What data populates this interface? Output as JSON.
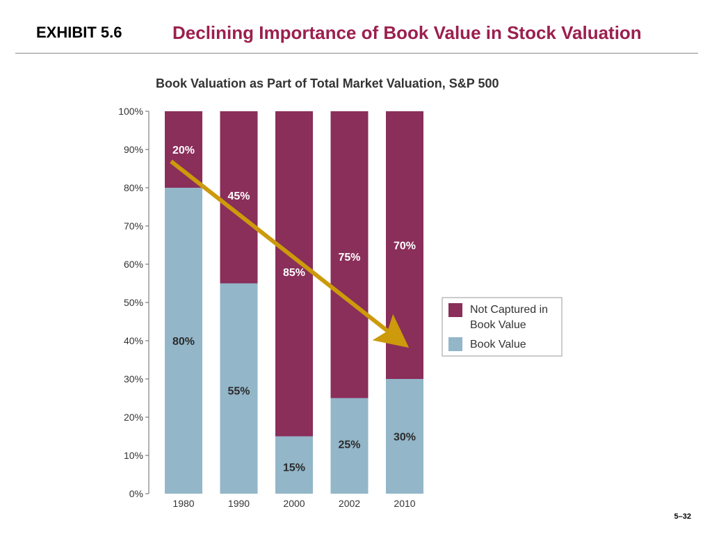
{
  "header": {
    "exhibit": "EXHIBIT 5.6",
    "title": "Declining Importance of Book Value in Stock Valuation"
  },
  "footer": {
    "page_number": "5–32"
  },
  "chart_data": {
    "type": "bar",
    "stacked": true,
    "title": "Book Valuation as Part of Total Market Valuation, S&P 500",
    "xlabel": "",
    "ylabel": "",
    "ylim": [
      0,
      100
    ],
    "y_ticks": [
      "0%",
      "10%",
      "20%",
      "30%",
      "40%",
      "50%",
      "60%",
      "70%",
      "80%",
      "90%",
      "100%"
    ],
    "categories": [
      "1980",
      "1990",
      "2000",
      "2002",
      "2010"
    ],
    "series": [
      {
        "name": "Book Value",
        "color": "#93b6c9",
        "values": [
          80,
          55,
          15,
          25,
          30
        ],
        "labels": [
          "80%",
          "55%",
          "15%",
          "25%",
          "30%"
        ]
      },
      {
        "name": "Not Captured in Book Value",
        "color": "#8a2e5a",
        "values": [
          20,
          45,
          85,
          75,
          70
        ],
        "labels": [
          "20%",
          "45%",
          "85%",
          "75%",
          "70%"
        ]
      }
    ],
    "legend": {
      "placement": "right",
      "entries": [
        "Not Captured in",
        "Book Value",
        "Book Value"
      ]
    },
    "annotation": {
      "type": "arrow",
      "from": "1980",
      "to": "2010",
      "color": "#cc9a0a"
    },
    "grid": false
  }
}
